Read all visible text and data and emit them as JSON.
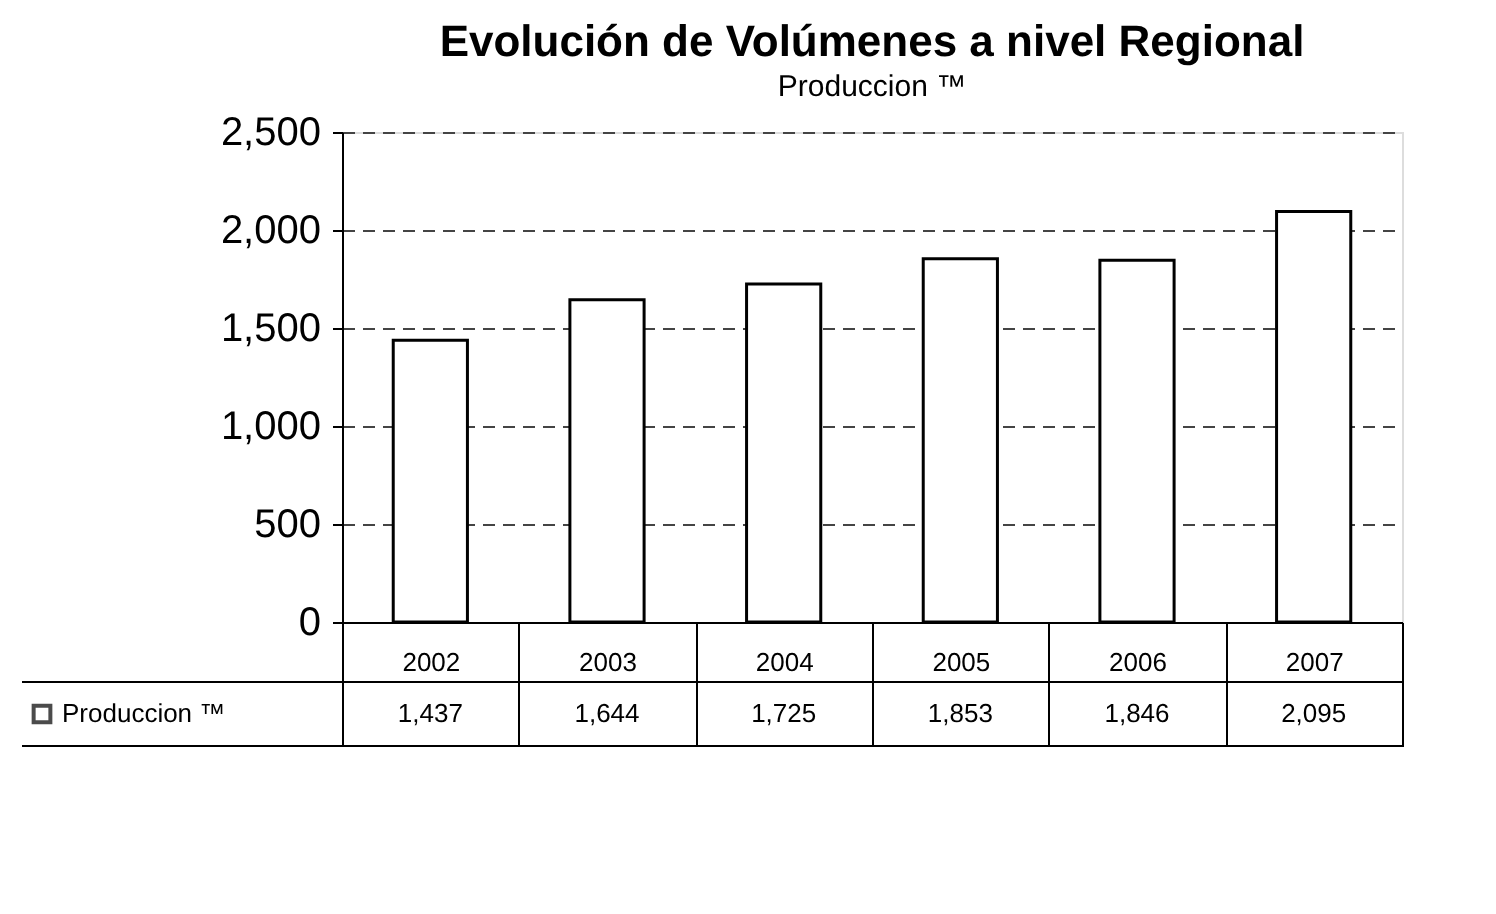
{
  "chart_data": {
    "type": "bar",
    "title": "Evolución de Volúmenes a nivel Regional",
    "subtitle": "Produccion ™",
    "categories": [
      "2002",
      "2003",
      "2004",
      "2005",
      "2006",
      "2007"
    ],
    "series": [
      {
        "name": "Produccion ™",
        "color": "#ffffff",
        "values": [
          1437,
          1644,
          1725,
          1853,
          1846,
          2095
        ],
        "value_labels": [
          "1,437",
          "1,644",
          "1,725",
          "1,853",
          "1,846",
          "2,095"
        ]
      }
    ],
    "ylim": [
      0,
      2500
    ],
    "yticks": [
      0,
      {
        "value": 500,
        "label": "500"
      },
      {
        "value": 1000,
        "label": "1,000"
      },
      {
        "value": 1500,
        "label": "1,500"
      },
      {
        "value": 2000,
        "label": "2,000"
      },
      {
        "value": 2500,
        "label": "2,500"
      }
    ],
    "grid": "y",
    "legend": "bottom left"
  }
}
